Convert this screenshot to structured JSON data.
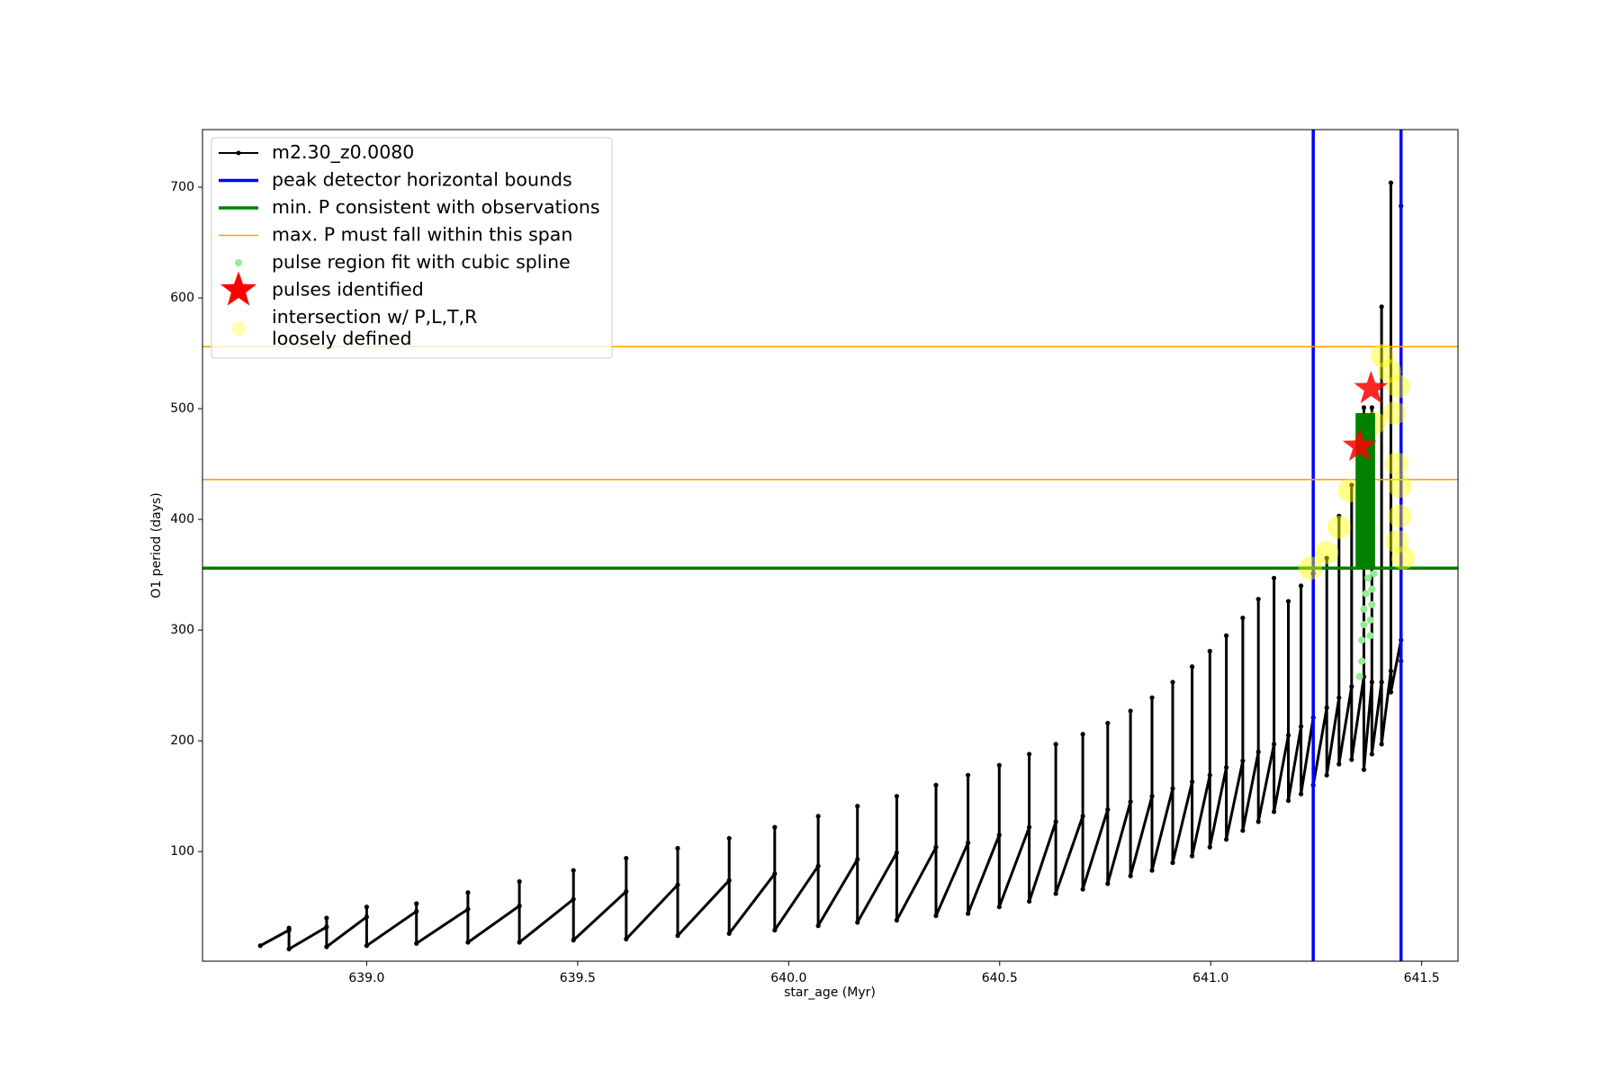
{
  "chart_data": {
    "type": "line",
    "xlabel": "star_age (Myr)",
    "ylabel": "O1 period (days)",
    "xlim": [
      638.611,
      641.586
    ],
    "ylim": [
      1,
      752
    ],
    "xticks": [
      {
        "value": 639.0,
        "label": "639.0"
      },
      {
        "value": 639.5,
        "label": "639.5"
      },
      {
        "value": 640.0,
        "label": "640.0"
      },
      {
        "value": 640.5,
        "label": "640.5"
      },
      {
        "value": 641.0,
        "label": "641.0"
      },
      {
        "value": 641.5,
        "label": "641.5"
      }
    ],
    "yticks": [
      100,
      200,
      300,
      400,
      500,
      600,
      700
    ],
    "legend": "upper left",
    "series": [
      {
        "name": "m2.30_z0.0080",
        "color": "#000000",
        "kind": "line",
        "marker": "dot",
        "linewidth": 3,
        "x": [
          638.748,
          638.816,
          638.816,
          638.816,
          638.905,
          638.905,
          638.905,
          639.0,
          639.0,
          639.0,
          639.118,
          639.118,
          639.118,
          639.24,
          639.24,
          639.24,
          639.362,
          639.362,
          639.362,
          639.49,
          639.49,
          639.49,
          639.615,
          639.615,
          639.615,
          639.737,
          639.737,
          639.737,
          639.859,
          639.859,
          639.859,
          639.967,
          639.967,
          639.967,
          640.07,
          640.07,
          640.07,
          640.163,
          640.163,
          640.163,
          640.256,
          640.256,
          640.256,
          640.349,
          640.349,
          640.349,
          640.425,
          640.425,
          640.425,
          640.499,
          640.499,
          640.499,
          640.57,
          640.57,
          640.57,
          640.633,
          640.633,
          640.633,
          640.697,
          640.697,
          640.697,
          640.756,
          640.756,
          640.756,
          640.81,
          640.81,
          640.81,
          640.861,
          640.861,
          640.861,
          640.91,
          640.91,
          640.91,
          640.956,
          640.956,
          640.956,
          640.998,
          640.998,
          640.998,
          641.037,
          641.037,
          641.037,
          641.076,
          641.076,
          641.076,
          641.113,
          641.113,
          641.113,
          641.15,
          641.15,
          641.15,
          641.184,
          641.184,
          641.184,
          641.214,
          641.214,
          641.214,
          641.243,
          641.243,
          641.243,
          641.275,
          641.275,
          641.275,
          641.304,
          641.304,
          641.304,
          641.334,
          641.334,
          641.334,
          641.363,
          641.363,
          641.363,
          641.382,
          641.382,
          641.382,
          641.405,
          641.405,
          641.405,
          641.427,
          641.427,
          641.427,
          641.451,
          641.451,
          641.451
        ],
        "values": [
          15,
          29,
          31,
          12,
          32,
          40,
          14,
          41,
          50,
          15,
          46,
          53,
          17,
          48,
          63,
          18,
          51,
          73,
          18,
          57,
          83,
          20,
          64,
          94,
          21,
          70,
          103,
          24,
          74,
          112,
          26,
          80,
          122,
          29,
          87,
          132,
          33,
          93,
          141,
          36,
          99,
          150,
          38,
          104,
          160,
          42,
          108,
          169,
          44,
          115,
          178,
          50,
          122,
          188,
          55,
          127,
          197,
          62,
          132,
          206,
          66,
          138,
          216,
          71,
          145,
          227,
          78,
          150,
          239,
          83,
          157,
          253,
          90,
          163,
          267,
          96,
          169,
          281,
          104,
          176,
          295,
          111,
          182,
          311,
          119,
          190,
          328,
          127,
          197,
          347,
          136,
          205,
          326,
          146,
          213,
          340,
          152,
          221,
          351,
          160,
          230,
          365,
          169,
          239,
          403,
          179,
          249,
          431,
          183,
          258,
          501,
          174,
          253,
          501,
          188,
          253,
          592,
          197,
          263,
          704,
          244,
          291,
          683,
          272
        ]
      },
      {
        "name": "peak detector horizontal bounds",
        "color": "#0000ff",
        "kind": "vline",
        "linewidth": 3.5,
        "values": [
          641.243,
          641.451
        ]
      },
      {
        "name": "min. P consistent with observations",
        "color": "#008000",
        "kind": "hline",
        "linewidth": 3.5,
        "values": [
          356
        ]
      },
      {
        "name": "max. P must fall within this span",
        "color": "#ffa500",
        "kind": "hline",
        "linewidth": 1.6,
        "values": [
          436,
          556
        ]
      },
      {
        "name": "pulse region fit with cubic spline",
        "color": "#90ee90",
        "kind": "scatter",
        "x": [
          641.353,
          641.358,
          641.358,
          641.363,
          641.363,
          641.368,
          641.373,
          641.378,
          641.378,
          641.382,
          641.382,
          641.387
        ],
        "values": [
          258,
          272,
          291,
          305,
          319,
          333,
          347,
          295,
          309,
          323,
          337,
          351
        ]
      },
      {
        "name": "pulses identified",
        "color": "#ff0000",
        "kind": "star",
        "x": [
          641.353,
          641.38
        ],
        "values": [
          466,
          518
        ]
      },
      {
        "name": "intersection w/ P,L,T,R\nloosely defined",
        "color": "#ffff00",
        "kind": "circle",
        "x": [
          641.236,
          641.275,
          641.304,
          641.329,
          641.363,
          641.387,
          641.407,
          641.424,
          641.436,
          641.441,
          641.448,
          641.456,
          641.441,
          641.448,
          641.445
        ],
        "values": [
          356,
          370,
          393,
          426,
          468,
          487,
          548,
          534,
          496,
          450,
          403,
          365,
          380,
          430,
          520
        ]
      },
      {
        "color": "#008000",
        "kind": "line",
        "linewidth": 9,
        "x": [
          641.353,
          641.353,
          null,
          641.363,
          641.363,
          null,
          641.38,
          641.38
        ],
        "values": [
          356,
          496,
          null,
          356,
          496,
          null,
          356,
          496
        ]
      }
    ]
  }
}
